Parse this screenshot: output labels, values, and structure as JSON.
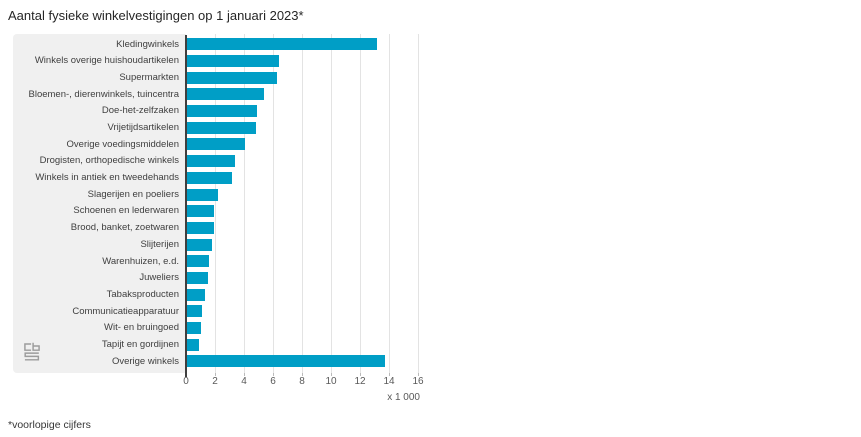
{
  "title": "Aantal fysieke winkelvestigingen op 1 januari 2023*",
  "footnote": "*voorlopige cijfers",
  "logo": {
    "name": "cbs-logo",
    "color": "#9c9c9c"
  },
  "colors": {
    "bar": "#009ec6",
    "panel_background": "#f0f0f0",
    "plot_background": "#ffffff",
    "gridline": "#e3e3e3",
    "axis_line": "#3f3f3f",
    "tick_text": "#595959",
    "label_text": "#404040"
  },
  "chart_data": {
    "type": "bar",
    "orientation": "horizontal",
    "title": "Aantal fysieke winkelvestigingen op 1 januari 2023*",
    "categories": [
      "Kledingwinkels",
      "Winkels overige huishoudartikelen",
      "Supermarkten",
      "Bloemen-, dierenwinkels, tuincentra",
      "Doe-het-zelfzaken",
      "Vrijetijdsartikelen",
      "Overige voedingsmiddelen",
      "Drogisten, orthopedische winkels",
      "Winkels in antiek en tweedehands",
      "Slagerijen en poeliers",
      "Schoenen en lederwaren",
      "Brood, banket, zoetwaren",
      "Slijterijen",
      "Warenhuizen, e.d.",
      "Juweliers",
      "Tabaksproducten",
      "Communicatieapparatuur",
      "Wit- en bruingoed",
      "Tapijt en gordijnen",
      "Overige winkels"
    ],
    "values": [
      13.2,
      6.4,
      6.3,
      5.4,
      4.9,
      4.8,
      4.1,
      3.4,
      3.2,
      2.2,
      1.9,
      1.9,
      1.8,
      1.6,
      1.5,
      1.3,
      1.1,
      1.0,
      0.9,
      13.7
    ],
    "xlabel": "x 1 000",
    "ylabel": "",
    "xlim": [
      0,
      16
    ],
    "x_ticks": [
      0,
      2,
      4,
      6,
      8,
      10,
      12,
      14,
      16
    ],
    "grid": true,
    "legend": false
  }
}
